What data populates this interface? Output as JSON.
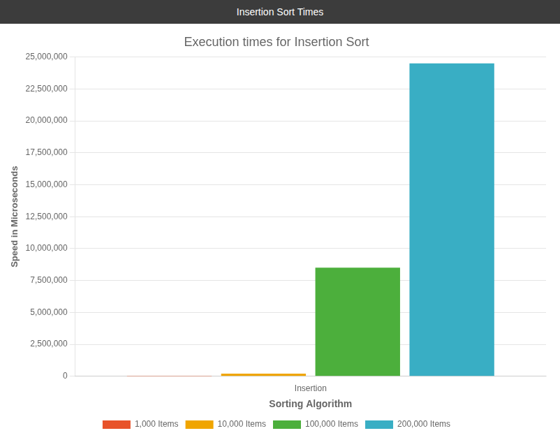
{
  "chart_data": {
    "type": "bar",
    "window_title": "Insertion Sort Times",
    "title": "Execution times for Insertion Sort",
    "xlabel": "Sorting Algorithm",
    "ylabel": "Speed in Microseconds",
    "categories": [
      "Insertion"
    ],
    "series": [
      {
        "name": "1,000 Items",
        "color": "#e8532a",
        "values": [
          800
        ]
      },
      {
        "name": "10,000 Items",
        "color": "#f0a500",
        "values": [
          210000
        ]
      },
      {
        "name": "100,000 Items",
        "color": "#4caf3c",
        "values": [
          8500000
        ]
      },
      {
        "name": "200,000 Items",
        "color": "#39aec4",
        "values": [
          24500000
        ]
      }
    ],
    "ylim": [
      0,
      25000000
    ],
    "yticks": [
      0,
      {
        "value": 2500000,
        "label": "2,500,000"
      },
      {
        "value": 5000000,
        "label": "5,000,000"
      },
      {
        "value": 7500000,
        "label": "7,500,000"
      },
      {
        "value": 10000000,
        "label": "10,000,000"
      },
      {
        "value": 12500000,
        "label": "12,500,000"
      },
      {
        "value": 15000000,
        "label": "15,000,000"
      },
      {
        "value": 17500000,
        "label": "17,500,000"
      },
      {
        "value": 20000000,
        "label": "20,000,000"
      },
      {
        "value": 22500000,
        "label": "22,500,000"
      },
      {
        "value": 25000000,
        "label": "25,000,000"
      }
    ],
    "grid": true,
    "legend": "bottom"
  }
}
